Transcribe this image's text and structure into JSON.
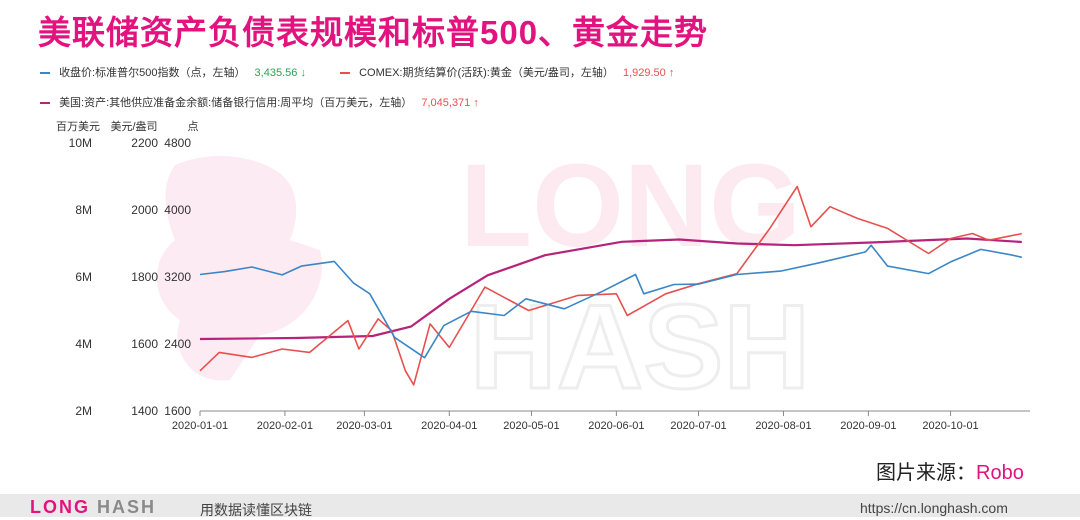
{
  "title": "美联储资产负债表规模和标普500、黄金走势",
  "legend": [
    {
      "label": "收盘价:标准普尔500指数（点，左轴）",
      "value": "3,435.56",
      "arrow": "↓",
      "color": "#3a86c8",
      "value_color": "#2aa44f"
    },
    {
      "label": "COMEX:期货结算价(活跃):黄金（美元/盎司，左轴）",
      "value": "1,929.50",
      "arrow": "↑",
      "color": "#e8504f",
      "value_color": "#e8504f"
    },
    {
      "label": "美国:资产:其他供应准备金余额:储备银行信用:周平均（百万美元，左轴）",
      "value": "7,045,371",
      "arrow": "↑",
      "color": "#b5247a",
      "value_color": "#e8504f"
    }
  ],
  "axis_units": [
    "百万美元",
    "美元/盎司",
    "点"
  ],
  "source_label": "图片来源：",
  "source_value": "Robo",
  "watermark": "LONG HASH",
  "footer": {
    "logo_a": "LONG",
    "logo_b": "HASH",
    "slogan": "用数据读懂区块链",
    "url": "https://cn.longhash.com"
  },
  "chart_data": {
    "type": "line",
    "x_ticks": [
      "2020-01-01",
      "2020-02-01",
      "2020-03-01",
      "2020-04-01",
      "2020-05-01",
      "2020-06-01",
      "2020-07-01",
      "2020-08-01",
      "2020-09-01",
      "2020-10-01"
    ],
    "axes": [
      {
        "unit": "百万美元",
        "ticks": [
          "10M",
          "8M",
          "6M",
          "4M",
          "2M"
        ],
        "range": [
          2000000,
          10000000
        ]
      },
      {
        "unit": "美元/盎司",
        "ticks": [
          "2200",
          "2000",
          "1800",
          "1600",
          "1400"
        ],
        "range": [
          1400,
          2200
        ]
      },
      {
        "unit": "点",
        "ticks": [
          "4800",
          "4000",
          "3200",
          "2400",
          "1600"
        ],
        "range": [
          1600,
          4800
        ]
      }
    ],
    "series": [
      {
        "name": "收盘价:标准普尔500指数（点，左轴）",
        "axis": 2,
        "color": "#3a86c8",
        "points": [
          [
            "2020-01-01",
            3230
          ],
          [
            "2020-01-10",
            3265
          ],
          [
            "2020-01-20",
            3320
          ],
          [
            "2020-01-31",
            3225
          ],
          [
            "2020-02-07",
            3330
          ],
          [
            "2020-02-19",
            3386
          ],
          [
            "2020-02-26",
            3130
          ],
          [
            "2020-03-03",
            3000
          ],
          [
            "2020-03-12",
            2480
          ],
          [
            "2020-03-23",
            2237
          ],
          [
            "2020-03-30",
            2620
          ],
          [
            "2020-04-09",
            2790
          ],
          [
            "2020-04-21",
            2740
          ],
          [
            "2020-04-29",
            2940
          ],
          [
            "2020-05-13",
            2820
          ],
          [
            "2020-05-27",
            3030
          ],
          [
            "2020-06-08",
            3230
          ],
          [
            "2020-06-11",
            3000
          ],
          [
            "2020-06-22",
            3110
          ],
          [
            "2020-07-01",
            3115
          ],
          [
            "2020-07-15",
            3230
          ],
          [
            "2020-07-31",
            3270
          ],
          [
            "2020-08-14",
            3370
          ],
          [
            "2020-08-31",
            3500
          ],
          [
            "2020-09-02",
            3580
          ],
          [
            "2020-09-08",
            3330
          ],
          [
            "2020-09-23",
            3240
          ],
          [
            "2020-10-01",
            3380
          ],
          [
            "2020-10-12",
            3530
          ],
          [
            "2020-10-23",
            3465
          ],
          [
            "2020-10-27",
            3435.56
          ]
        ]
      },
      {
        "name": "COMEX:期货结算价(活跃):黄金（美元/盎司，左轴）",
        "axis": 1,
        "color": "#e8504f",
        "points": [
          [
            "2020-01-01",
            1520
          ],
          [
            "2020-01-08",
            1575
          ],
          [
            "2020-01-20",
            1560
          ],
          [
            "2020-01-31",
            1585
          ],
          [
            "2020-02-10",
            1575
          ],
          [
            "2020-02-24",
            1670
          ],
          [
            "2020-02-28",
            1585
          ],
          [
            "2020-03-06",
            1675
          ],
          [
            "2020-03-11",
            1640
          ],
          [
            "2020-03-16",
            1520
          ],
          [
            "2020-03-19",
            1478
          ],
          [
            "2020-03-25",
            1660
          ],
          [
            "2020-04-01",
            1590
          ],
          [
            "2020-04-14",
            1770
          ],
          [
            "2020-04-30",
            1700
          ],
          [
            "2020-05-18",
            1745
          ],
          [
            "2020-06-01",
            1750
          ],
          [
            "2020-06-05",
            1685
          ],
          [
            "2020-06-19",
            1750
          ],
          [
            "2020-07-01",
            1780
          ],
          [
            "2020-07-15",
            1810
          ],
          [
            "2020-07-27",
            1945
          ],
          [
            "2020-08-06",
            2070
          ],
          [
            "2020-08-11",
            1950
          ],
          [
            "2020-08-18",
            2010
          ],
          [
            "2020-08-28",
            1975
          ],
          [
            "2020-09-08",
            1945
          ],
          [
            "2020-09-23",
            1870
          ],
          [
            "2020-10-01",
            1915
          ],
          [
            "2020-10-09",
            1930
          ],
          [
            "2020-10-15",
            1910
          ],
          [
            "2020-10-27",
            1929.5
          ]
        ]
      },
      {
        "name": "美国:资产:其他供应准备金余额:储备银行信用:周平均（百万美元，左轴）",
        "axis": 0,
        "color": "#b5247a",
        "points": [
          [
            "2020-01-01",
            4150000
          ],
          [
            "2020-02-05",
            4180000
          ],
          [
            "2020-03-04",
            4240000
          ],
          [
            "2020-03-18",
            4520000
          ],
          [
            "2020-04-01",
            5350000
          ],
          [
            "2020-04-15",
            6050000
          ],
          [
            "2020-05-06",
            6650000
          ],
          [
            "2020-06-03",
            7050000
          ],
          [
            "2020-06-24",
            7120000
          ],
          [
            "2020-07-15",
            7000000
          ],
          [
            "2020-08-05",
            6950000
          ],
          [
            "2020-09-02",
            7030000
          ],
          [
            "2020-10-07",
            7150000
          ],
          [
            "2020-10-27",
            7045371
          ]
        ]
      }
    ]
  }
}
